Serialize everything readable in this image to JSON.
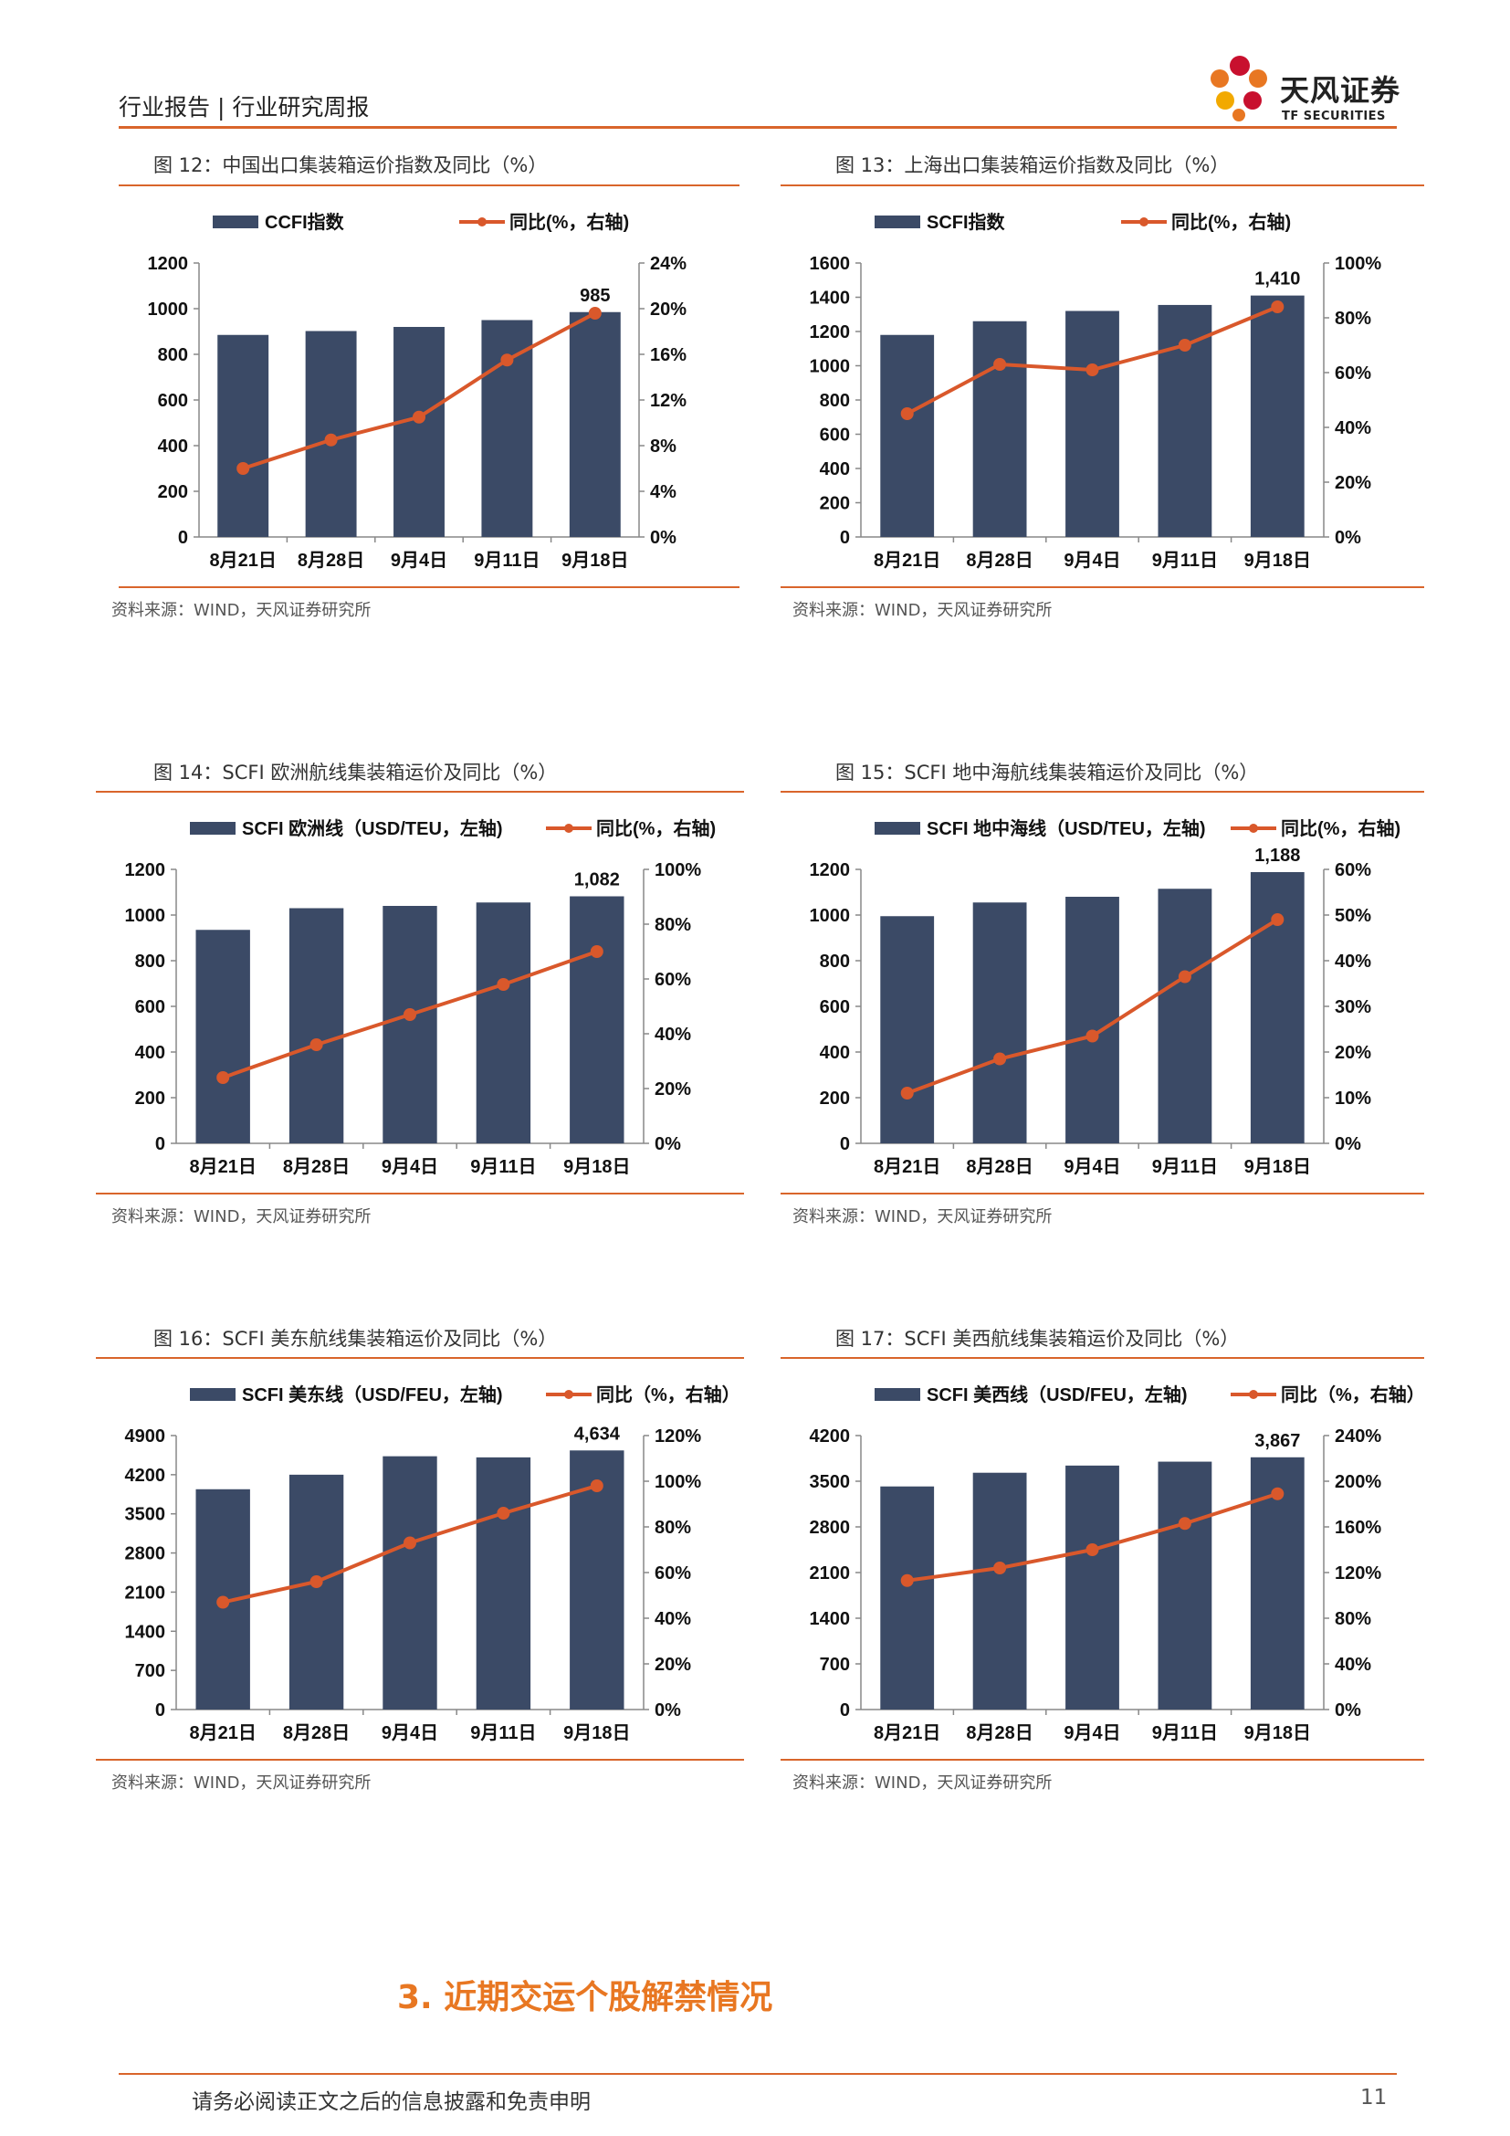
{
  "header": {
    "left_text": "行业报告 | 行业研究周报"
  },
  "logo": {
    "name": "天风证券",
    "sub": "TF SECURITIES"
  },
  "figures": [
    {
      "title": "图 12：中国出口集装箱运价指数及同比（%）",
      "source": "资料来源：WIND，天风证券研究所"
    },
    {
      "title": "图 13：上海出口集装箱运价指数及同比（%）",
      "source": "资料来源：WIND，天风证券研究所"
    },
    {
      "title": "图 14：SCFI 欧洲航线集装箱运价及同比（%）",
      "source": "资料来源：WIND，天风证券研究所"
    },
    {
      "title": "图 15：SCFI 地中海航线集装箱运价及同比（%）",
      "source": "资料来源：WIND，天风证券研究所"
    },
    {
      "title": "图 16：SCFI 美东航线集装箱运价及同比（%）",
      "source": "资料来源：WIND，天风证券研究所"
    },
    {
      "title": "图 17：SCFI 美西航线集装箱运价及同比（%）",
      "source": "资料来源：WIND，天风证券研究所"
    }
  ],
  "section_title": "3. 近期交运个股解禁情况",
  "footer": {
    "disclaimer": "请务必阅读正文之后的信息披露和免责申明",
    "page": "11"
  },
  "colors": {
    "bar": "#3b4a66",
    "line": "#d9582b",
    "accent": "#d9652b"
  },
  "chart_data": [
    {
      "type": "bar",
      "categories": [
        "8月21日",
        "8月28日",
        "9月4日",
        "9月11日",
        "9月18日"
      ],
      "bar_series": {
        "name": "CCFI指数",
        "values": [
          885,
          902,
          920,
          950,
          985
        ]
      },
      "line_series": {
        "name": "同比(%，右轴)",
        "values": [
          6.0,
          8.5,
          10.5,
          15.5,
          19.6
        ]
      },
      "bar_label": "985",
      "ylim_left": [
        0,
        1200
      ],
      "yticks_left": [
        "0",
        "200",
        "400",
        "600",
        "800",
        "1000",
        "1200"
      ],
      "ylim_right": [
        0,
        24
      ],
      "yticks_right": [
        "0%",
        "4%",
        "8%",
        "12%",
        "16%",
        "20%",
        "24%"
      ]
    },
    {
      "type": "bar",
      "categories": [
        "8月21日",
        "8月28日",
        "9月4日",
        "9月11日",
        "9月18日"
      ],
      "bar_series": {
        "name": "SCFI指数",
        "values": [
          1180,
          1260,
          1320,
          1355,
          1410
        ]
      },
      "line_series": {
        "name": "同比(%，右轴)",
        "values": [
          45,
          63,
          61,
          70,
          84
        ]
      },
      "bar_label": "1,410",
      "ylim_left": [
        0,
        1600
      ],
      "yticks_left": [
        "0",
        "200",
        "400",
        "600",
        "800",
        "1000",
        "1200",
        "1400",
        "1600"
      ],
      "ylim_right": [
        0,
        100
      ],
      "yticks_right": [
        "0%",
        "20%",
        "40%",
        "60%",
        "80%",
        "100%"
      ]
    },
    {
      "type": "bar",
      "categories": [
        "8月21日",
        "8月28日",
        "9月4日",
        "9月11日",
        "9月18日"
      ],
      "bar_series": {
        "name": "SCFI 欧洲线（USD/TEU，左轴)",
        "values": [
          935,
          1030,
          1040,
          1055,
          1082
        ]
      },
      "line_series": {
        "name": "同比(%，右轴)",
        "values": [
          24,
          36,
          47,
          58,
          70
        ]
      },
      "bar_label": "1,082",
      "ylim_left": [
        0,
        1200
      ],
      "yticks_left": [
        "0",
        "200",
        "400",
        "600",
        "800",
        "1000",
        "1200"
      ],
      "ylim_right": [
        0,
        100
      ],
      "yticks_right": [
        "0%",
        "20%",
        "40%",
        "60%",
        "80%",
        "100%"
      ]
    },
    {
      "type": "bar",
      "categories": [
        "8月21日",
        "8月28日",
        "9月4日",
        "9月11日",
        "9月18日"
      ],
      "bar_series": {
        "name": "SCFI 地中海线（USD/TEU，左轴)",
        "values": [
          995,
          1055,
          1080,
          1115,
          1188
        ]
      },
      "line_series": {
        "name": "同比(%，右轴)",
        "values": [
          11,
          18.5,
          23.5,
          36.5,
          49
        ]
      },
      "bar_label": "1,188",
      "ylim_left": [
        0,
        1200
      ],
      "yticks_left": [
        "0",
        "200",
        "400",
        "600",
        "800",
        "1000",
        "1200"
      ],
      "ylim_right": [
        0,
        60
      ],
      "yticks_right": [
        "0%",
        "10%",
        "20%",
        "30%",
        "40%",
        "50%",
        "60%"
      ]
    },
    {
      "type": "bar",
      "categories": [
        "8月21日",
        "8月28日",
        "9月4日",
        "9月11日",
        "9月18日"
      ],
      "bar_series": {
        "name": "SCFI 美东线（USD/FEU，左轴)",
        "values": [
          3940,
          4200,
          4530,
          4510,
          4634
        ]
      },
      "line_series": {
        "name": "同比（%，右轴）",
        "values": [
          47,
          56,
          73,
          86,
          98
        ]
      },
      "bar_label": "4,634",
      "ylim_left": [
        0,
        4900
      ],
      "yticks_left": [
        "0",
        "700",
        "1400",
        "2100",
        "2800",
        "3500",
        "4200",
        "4900"
      ],
      "ylim_right": [
        0,
        120
      ],
      "yticks_right": [
        "0%",
        "20%",
        "40%",
        "60%",
        "80%",
        "100%",
        "120%"
      ]
    },
    {
      "type": "bar",
      "categories": [
        "8月21日",
        "8月28日",
        "9月4日",
        "9月11日",
        "9月18日"
      ],
      "bar_series": {
        "name": "SCFI 美西线（USD/FEU，左轴)",
        "values": [
          3420,
          3630,
          3740,
          3800,
          3867
        ]
      },
      "line_series": {
        "name": "同比（%，右轴）",
        "values": [
          113,
          124,
          140,
          163,
          189
        ]
      },
      "bar_label": "3,867",
      "ylim_left": [
        0,
        4200
      ],
      "yticks_left": [
        "0",
        "700",
        "1400",
        "2100",
        "2800",
        "3500",
        "4200"
      ],
      "ylim_right": [
        0,
        240
      ],
      "yticks_right": [
        "0%",
        "40%",
        "80%",
        "120%",
        "160%",
        "200%",
        "240%"
      ]
    }
  ]
}
